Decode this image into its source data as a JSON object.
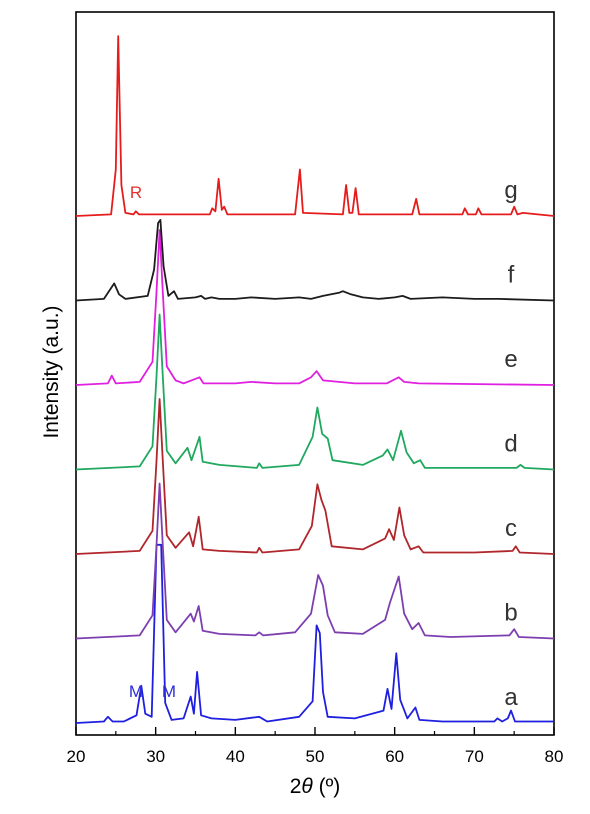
{
  "chart_data": {
    "type": "line",
    "xlabel_prefix": "2",
    "xlabel_symbol": "θ",
    "xlabel_unit": " (º)",
    "ylabel": "Intensity (a.u.)",
    "xlim": [
      20,
      80
    ],
    "x_ticks": [
      "20",
      "30",
      "40",
      "50",
      "60",
      "70",
      "80"
    ],
    "annotations": [
      "M",
      "M",
      "R"
    ],
    "series": [
      {
        "name": "a",
        "color": "#1f1fe0",
        "offset": 0,
        "points": [
          [
            20,
            0
          ],
          [
            23.5,
            0.1
          ],
          [
            24,
            0.4
          ],
          [
            24.6,
            0.1
          ],
          [
            26,
            0.1
          ],
          [
            27.6,
            0.5
          ],
          [
            28.2,
            2.4
          ],
          [
            28.7,
            0.6
          ],
          [
            29.5,
            0.4
          ],
          [
            30.1,
            11.5
          ],
          [
            30.7,
            11.5
          ],
          [
            31.2,
            1.3
          ],
          [
            32,
            0.2
          ],
          [
            33.5,
            0.3
          ],
          [
            34.4,
            1.7
          ],
          [
            34.8,
            0.6
          ],
          [
            35.2,
            3.3
          ],
          [
            35.7,
            0.5
          ],
          [
            37,
            0.3
          ],
          [
            40,
            0.2
          ],
          [
            43,
            0.4
          ],
          [
            44,
            0.1
          ],
          [
            48,
            0.4
          ],
          [
            49.7,
            1.4
          ],
          [
            50.2,
            6.3
          ],
          [
            50.6,
            5.8
          ],
          [
            51,
            2
          ],
          [
            51.6,
            0.4
          ],
          [
            55,
            0.3
          ],
          [
            58.6,
            0.8
          ],
          [
            59.1,
            2.2
          ],
          [
            59.6,
            0.9
          ],
          [
            60.2,
            4.5
          ],
          [
            60.7,
            1.5
          ],
          [
            61.6,
            0.3
          ],
          [
            62.6,
            1
          ],
          [
            63.1,
            0.2
          ],
          [
            66,
            0.1
          ],
          [
            72.5,
            0.1
          ],
          [
            72.9,
            0.3
          ],
          [
            73.5,
            0.1
          ],
          [
            74.2,
            0.3
          ],
          [
            74.6,
            0.8
          ],
          [
            75.1,
            0.1
          ],
          [
            80,
            0.1
          ]
        ]
      },
      {
        "name": "b",
        "color": "#7d3fb0",
        "offset": 1,
        "points": [
          [
            20,
            0
          ],
          [
            28,
            0.2
          ],
          [
            29.6,
            1.5
          ],
          [
            30.1,
            6
          ],
          [
            30.5,
            10
          ],
          [
            30.9,
            6
          ],
          [
            31.4,
            1.2
          ],
          [
            32.5,
            0.4
          ],
          [
            34.4,
            1.6
          ],
          [
            34.8,
            1.1
          ],
          [
            35.4,
            2.1
          ],
          [
            35.9,
            0.5
          ],
          [
            38,
            0.3
          ],
          [
            42.5,
            0.2
          ],
          [
            43,
            0.4
          ],
          [
            43.5,
            0.2
          ],
          [
            47.5,
            0.4
          ],
          [
            49.5,
            1.6
          ],
          [
            50.4,
            4.1
          ],
          [
            51,
            3.4
          ],
          [
            51.6,
            1.5
          ],
          [
            52.5,
            0.4
          ],
          [
            56,
            0.3
          ],
          [
            58.8,
            1.2
          ],
          [
            59.4,
            2.3
          ],
          [
            60.5,
            4
          ],
          [
            61.2,
            1.6
          ],
          [
            62.2,
            0.6
          ],
          [
            63,
            1
          ],
          [
            63.8,
            0.2
          ],
          [
            67,
            0.1
          ],
          [
            74.4,
            0.2
          ],
          [
            75,
            0.6
          ],
          [
            75.6,
            0.1
          ],
          [
            80,
            0
          ]
        ]
      },
      {
        "name": "c",
        "color": "#b0262b",
        "offset": 2,
        "points": [
          [
            20,
            0
          ],
          [
            28,
            0.2
          ],
          [
            29.6,
            1.5
          ],
          [
            30.1,
            6
          ],
          [
            30.5,
            10
          ],
          [
            30.9,
            6
          ],
          [
            31.4,
            1.2
          ],
          [
            32.5,
            0.4
          ],
          [
            34.2,
            1.4
          ],
          [
            34.7,
            0.5
          ],
          [
            35.4,
            2.4
          ],
          [
            35.9,
            0.3
          ],
          [
            38,
            0.2
          ],
          [
            42.7,
            0.1
          ],
          [
            43,
            0.4
          ],
          [
            43.4,
            0.1
          ],
          [
            48,
            0.3
          ],
          [
            49.6,
            1.8
          ],
          [
            50.3,
            4.5
          ],
          [
            50.8,
            3.5
          ],
          [
            51.3,
            2.8
          ],
          [
            52.1,
            0.5
          ],
          [
            56,
            0.3
          ],
          [
            58.8,
            1
          ],
          [
            59.3,
            1.6
          ],
          [
            59.9,
            0.9
          ],
          [
            60.6,
            3
          ],
          [
            61.2,
            1.2
          ],
          [
            62,
            0.3
          ],
          [
            63,
            0.5
          ],
          [
            63.6,
            0.1
          ],
          [
            70,
            0.1
          ],
          [
            74.8,
            0.2
          ],
          [
            75.2,
            0.5
          ],
          [
            75.7,
            0.1
          ],
          [
            80,
            0
          ]
        ]
      },
      {
        "name": "d",
        "color": "#1fa85e",
        "offset": 3,
        "points": [
          [
            20,
            0
          ],
          [
            28,
            0.2
          ],
          [
            29.6,
            1.5
          ],
          [
            30.1,
            6
          ],
          [
            30.5,
            10
          ],
          [
            30.9,
            6
          ],
          [
            31.4,
            1.2
          ],
          [
            32.5,
            0.4
          ],
          [
            34,
            1.4
          ],
          [
            34.5,
            0.6
          ],
          [
            35.5,
            2.1
          ],
          [
            35.9,
            0.5
          ],
          [
            38,
            0.3
          ],
          [
            42.7,
            0.1
          ],
          [
            43,
            0.4
          ],
          [
            43.4,
            0.1
          ],
          [
            48,
            0.3
          ],
          [
            49.7,
            2.1
          ],
          [
            50.3,
            4
          ],
          [
            50.9,
            2.3
          ],
          [
            51.6,
            2
          ],
          [
            52.2,
            0.6
          ],
          [
            56,
            0.3
          ],
          [
            58.5,
            0.9
          ],
          [
            59.1,
            1.3
          ],
          [
            59.8,
            0.6
          ],
          [
            60.8,
            2.5
          ],
          [
            61.5,
            1.1
          ],
          [
            62.4,
            0.4
          ],
          [
            63.2,
            0.6
          ],
          [
            63.8,
            0.1
          ],
          [
            70,
            0.1
          ],
          [
            75.3,
            0.1
          ],
          [
            75.8,
            0.3
          ],
          [
            76.3,
            0.1
          ],
          [
            80,
            0
          ]
        ]
      },
      {
        "name": "e",
        "color": "#e020e0",
        "offset": 4,
        "points": [
          [
            20,
            0
          ],
          [
            24,
            0.1
          ],
          [
            24.5,
            0.6
          ],
          [
            25,
            0.1
          ],
          [
            28,
            0.2
          ],
          [
            29.6,
            1.5
          ],
          [
            30.1,
            6
          ],
          [
            30.5,
            10
          ],
          [
            30.9,
            6
          ],
          [
            31.4,
            1.2
          ],
          [
            32.5,
            0.3
          ],
          [
            33.5,
            0.1
          ],
          [
            35.5,
            0.5
          ],
          [
            36,
            0.1
          ],
          [
            40,
            0.1
          ],
          [
            42,
            0.2
          ],
          [
            45,
            0.1
          ],
          [
            48,
            0.1
          ],
          [
            49.5,
            0.5
          ],
          [
            50.2,
            0.9
          ],
          [
            51,
            0.3
          ],
          [
            53,
            0.2
          ],
          [
            55,
            0.1
          ],
          [
            59,
            0.1
          ],
          [
            60.5,
            0.5
          ],
          [
            61.2,
            0.2
          ],
          [
            63,
            0.1
          ],
          [
            80,
            0
          ]
        ]
      },
      {
        "name": "f",
        "color": "#1c1c1c",
        "offset": 5,
        "points": [
          [
            20,
            0
          ],
          [
            23.5,
            0.1
          ],
          [
            24.8,
            1.1
          ],
          [
            25.4,
            0.4
          ],
          [
            26.2,
            0.1
          ],
          [
            29,
            0.3
          ],
          [
            29.8,
            2
          ],
          [
            30.3,
            5
          ],
          [
            30.6,
            5.2
          ],
          [
            31,
            2.2
          ],
          [
            31.6,
            0.3
          ],
          [
            32.3,
            0.6
          ],
          [
            32.8,
            0.1
          ],
          [
            35,
            0.2
          ],
          [
            35.7,
            0.3
          ],
          [
            36.2,
            0.1
          ],
          [
            37,
            0.2
          ],
          [
            38,
            0.1
          ],
          [
            40,
            0.1
          ],
          [
            42,
            0.2
          ],
          [
            45,
            0.1
          ],
          [
            48,
            0.2
          ],
          [
            49.5,
            0.1
          ],
          [
            51,
            0.3
          ],
          [
            53,
            0.5
          ],
          [
            53.5,
            0.6
          ],
          [
            54.5,
            0.4
          ],
          [
            56,
            0.2
          ],
          [
            58,
            0.1
          ],
          [
            60,
            0.2
          ],
          [
            61,
            0.3
          ],
          [
            62,
            0.1
          ],
          [
            66,
            0.2
          ],
          [
            70,
            0.1
          ],
          [
            73,
            0.1
          ],
          [
            80,
            0
          ]
        ]
      },
      {
        "name": "g",
        "color": "#e61c1c",
        "offset": 6,
        "points": [
          [
            20,
            0
          ],
          [
            24.4,
            0.1
          ],
          [
            25,
            3
          ],
          [
            25.3,
            11.6
          ],
          [
            25.7,
            2
          ],
          [
            26.2,
            0.2
          ],
          [
            27.2,
            0.1
          ],
          [
            27.5,
            0.3
          ],
          [
            27.9,
            0.1
          ],
          [
            36.8,
            0.1
          ],
          [
            37.1,
            0.5
          ],
          [
            37.5,
            0.3
          ],
          [
            37.9,
            2.4
          ],
          [
            38.3,
            0.4
          ],
          [
            38.6,
            0.6
          ],
          [
            39,
            0.1
          ],
          [
            47.5,
            0.1
          ],
          [
            48.1,
            3
          ],
          [
            48.5,
            0.2
          ],
          [
            53.5,
            0.1
          ],
          [
            53.9,
            2
          ],
          [
            54.3,
            0.2
          ],
          [
            54.7,
            0.2
          ],
          [
            55.1,
            1.8
          ],
          [
            55.5,
            0.1
          ],
          [
            62.2,
            0.1
          ],
          [
            62.7,
            1.1
          ],
          [
            63.1,
            0.1
          ],
          [
            68.5,
            0.1
          ],
          [
            68.8,
            0.5
          ],
          [
            69.2,
            0.1
          ],
          [
            70.2,
            0.1
          ],
          [
            70.5,
            0.5
          ],
          [
            70.9,
            0.1
          ],
          [
            74.6,
            0.1
          ],
          [
            75,
            0.6
          ],
          [
            75.4,
            0.1
          ],
          [
            76.1,
            0.2
          ],
          [
            80,
            0
          ]
        ]
      }
    ]
  }
}
